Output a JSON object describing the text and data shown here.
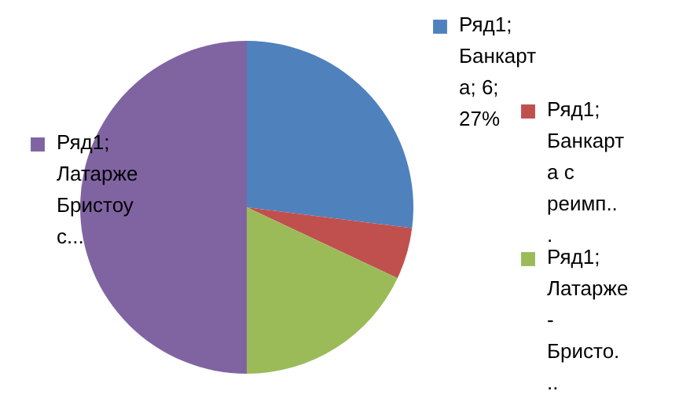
{
  "chart_data": {
    "type": "pie",
    "categories": [
      "Ряд1; Банкарта; 6; 27%",
      "Ряд1; Банкарта с реимп...",
      "Ряд1; Латарже - Бристо...",
      "Ряд1; Латарже Бристоу с..."
    ],
    "values": [
      27,
      5,
      18,
      50
    ],
    "colors": [
      "#4f81bd",
      "#c0504d",
      "#9bbb59",
      "#8064a2"
    ],
    "legend": "right"
  }
}
